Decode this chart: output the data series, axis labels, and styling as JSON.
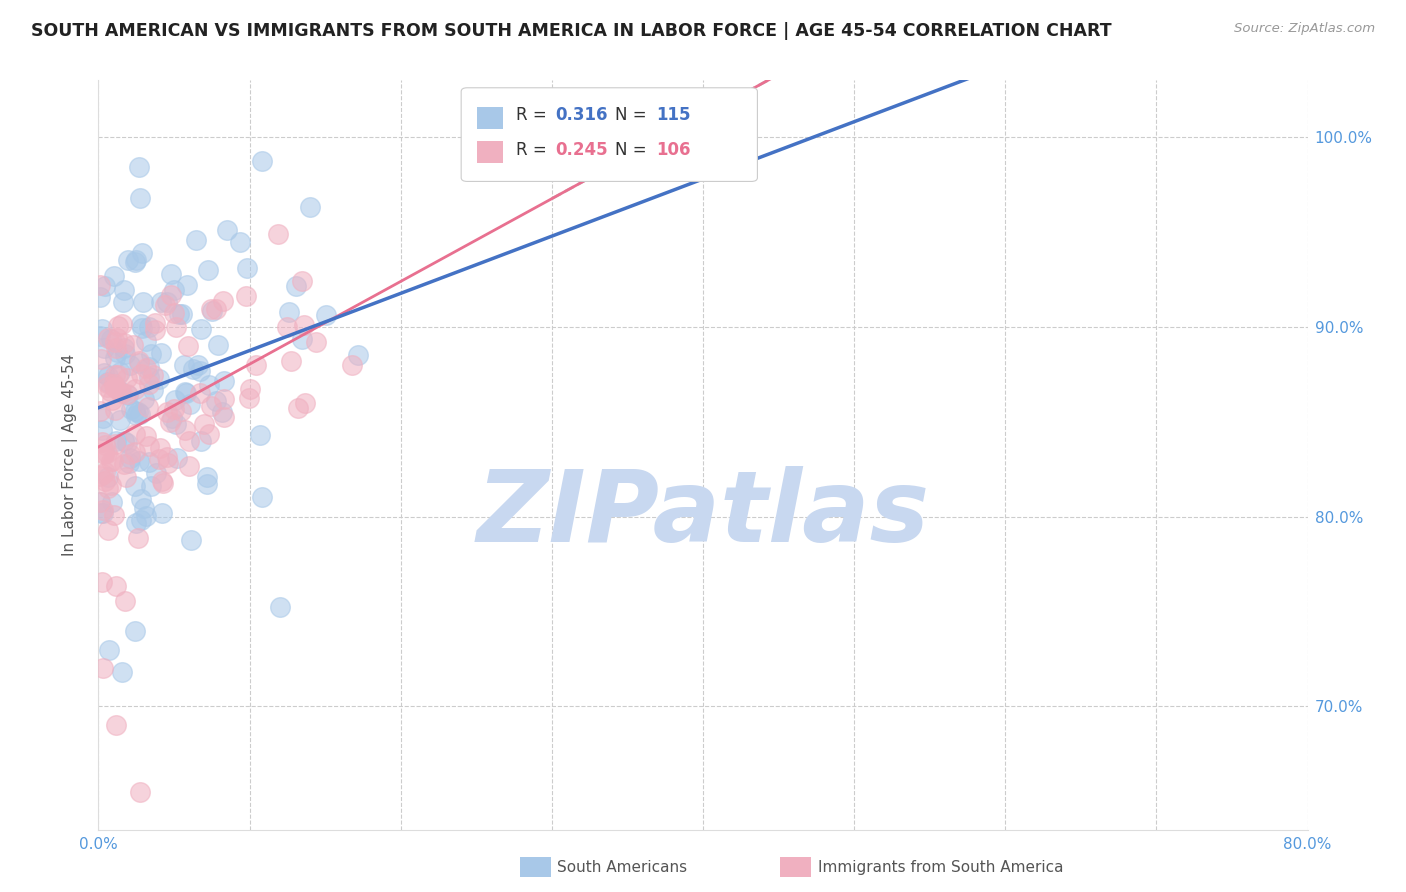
{
  "title": "SOUTH AMERICAN VS IMMIGRANTS FROM SOUTH AMERICA IN LABOR FORCE | AGE 45-54 CORRELATION CHART",
  "source": "Source: ZipAtlas.com",
  "ylabel": "In Labor Force | Age 45-54",
  "xlim": [
    0.0,
    0.8
  ],
  "ylim": [
    0.635,
    1.03
  ],
  "yticks": [
    0.7,
    0.8,
    0.9,
    1.0
  ],
  "xticks": [
    0.0,
    0.1,
    0.2,
    0.3,
    0.4,
    0.5,
    0.6,
    0.7,
    0.8
  ],
  "xtick_labels": [
    "0.0%",
    "",
    "",
    "",
    "",
    "",
    "",
    "",
    "80.0%"
  ],
  "ytick_labels": [
    "70.0%",
    "80.0%",
    "90.0%",
    "100.0%"
  ],
  "R_blue": 0.316,
  "N_blue": 115,
  "R_pink": 0.245,
  "N_pink": 106,
  "blue_color": "#A8C8E8",
  "pink_color": "#F0B0C0",
  "trend_blue": "#4472C4",
  "trend_pink": "#E87090",
  "trend_gray": "#BBBBBB",
  "watermark": "ZIPatlas",
  "watermark_color": "#C8D8F0",
  "legend_label_blue": "South Americans",
  "legend_label_pink": "Immigrants from South America",
  "background_color": "#FFFFFF",
  "grid_color": "#CCCCCC",
  "title_color": "#222222",
  "tick_color": "#5599DD"
}
